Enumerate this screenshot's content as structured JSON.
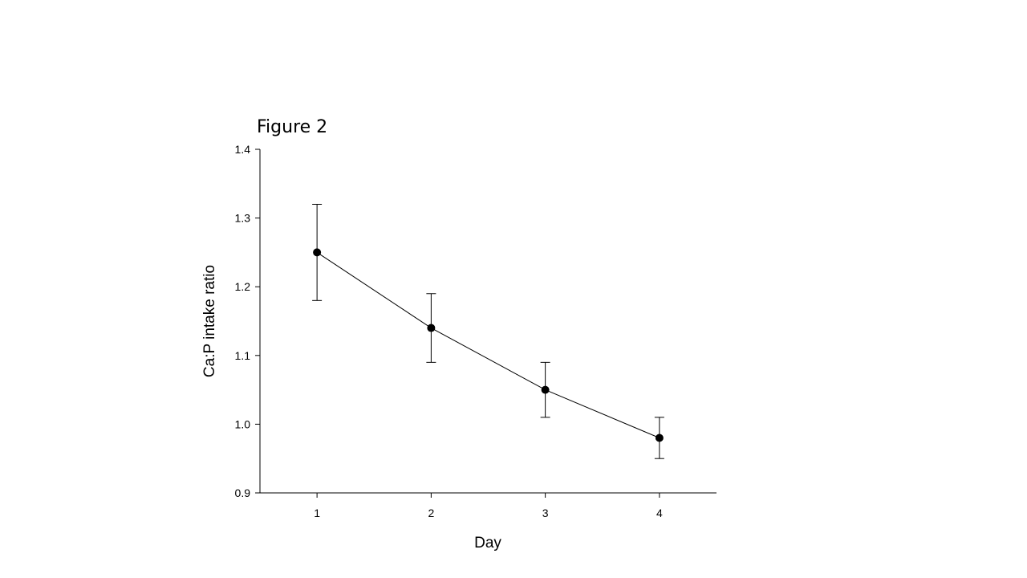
{
  "figure_label": "Figure 2",
  "chart_data": {
    "type": "line",
    "title": "",
    "xlabel": "Day",
    "ylabel": "Ca:P intake ratio",
    "x": [
      1,
      2,
      3,
      4
    ],
    "series": [
      {
        "values": [
          1.25,
          1.14,
          1.05,
          0.98
        ],
        "error_upper": [
          1.32,
          1.19,
          1.09,
          1.01
        ],
        "error_lower": [
          1.18,
          1.09,
          1.01,
          0.95
        ]
      }
    ],
    "xlim": [
      0.5,
      4.5
    ],
    "ylim": [
      0.9,
      1.4
    ],
    "x_ticks": [
      "1",
      "2",
      "3",
      "4"
    ],
    "y_ticks": [
      "0.9",
      "1.0",
      "1.1",
      "1.2",
      "1.3",
      "1.4"
    ],
    "grid": false,
    "marker": "filled-circle",
    "line_color": "#000000"
  }
}
